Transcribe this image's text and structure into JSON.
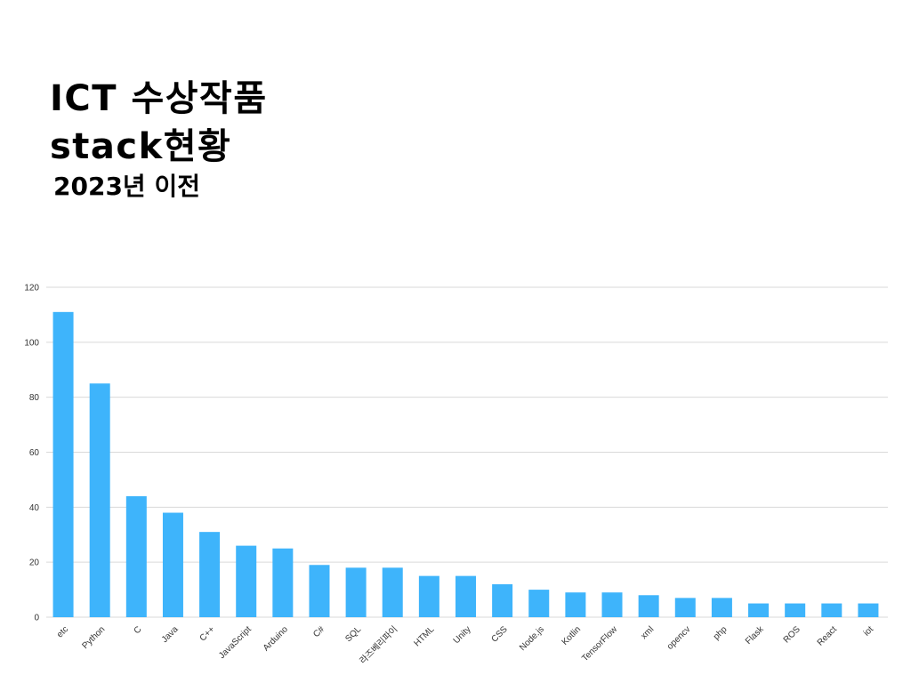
{
  "header": {
    "title_line1": "ICT 수상작품",
    "title_line2": "stack현황",
    "subtitle": "2023년 이전"
  },
  "chart_data": {
    "type": "bar",
    "categories": [
      "etc",
      "Python",
      "C",
      "Java",
      "C++",
      "JavaScript",
      "Arduino",
      "C#",
      "SQL",
      "라즈베리파이",
      "HTML",
      "Unity",
      "CSS",
      "Node.js",
      "Kotlin",
      "TensorFlow",
      "xml",
      "opencv",
      "php",
      "Flask",
      "ROS",
      "React",
      "iot"
    ],
    "values": [
      111,
      85,
      44,
      38,
      31,
      26,
      25,
      19,
      18,
      18,
      15,
      15,
      12,
      10,
      9,
      9,
      8,
      7,
      7,
      5,
      5,
      5,
      5
    ],
    "yticks": [
      0,
      20,
      40,
      60,
      80,
      100,
      120
    ],
    "ylim": [
      0,
      120
    ],
    "grid": true,
    "bar_color": "#3eb4fb",
    "grid_color": "#d9d9d9"
  }
}
